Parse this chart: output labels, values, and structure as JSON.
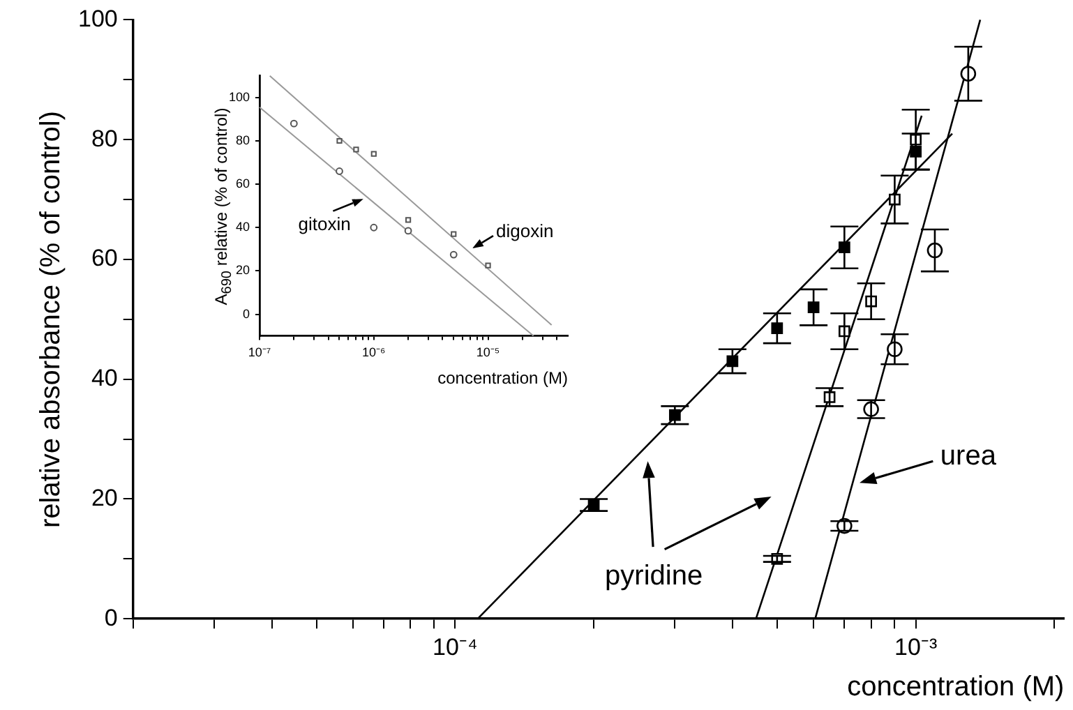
{
  "chart_data": [
    {
      "type": "scatter",
      "xlabel": "concentration (M)",
      "ylabel": "relative absorbance (% of control)",
      "log": "x",
      "grid": false,
      "legend": false,
      "xlim": [
        2e-05,
        0.0021
      ],
      "ylim": [
        0,
        100
      ],
      "xticks": [
        {
          "value": 2e-05,
          "label": null
        },
        {
          "value": 3e-05,
          "label": null
        },
        {
          "value": 4e-05,
          "label": null
        },
        {
          "value": 5e-05,
          "label": null
        },
        {
          "value": 6e-05,
          "label": null
        },
        {
          "value": 7e-05,
          "label": null
        },
        {
          "value": 8e-05,
          "label": null
        },
        {
          "value": 9e-05,
          "label": null
        },
        {
          "value": 0.0001,
          "label": "10⁻⁴"
        },
        {
          "value": 0.0002,
          "label": null
        },
        {
          "value": 0.0003,
          "label": null
        },
        {
          "value": 0.0004,
          "label": null
        },
        {
          "value": 0.0005,
          "label": null
        },
        {
          "value": 0.0006,
          "label": null
        },
        {
          "value": 0.0007,
          "label": null
        },
        {
          "value": 0.0008,
          "label": null
        },
        {
          "value": 0.0009,
          "label": null
        },
        {
          "value": 0.001,
          "label": "10⁻³"
        },
        {
          "value": 0.002,
          "label": null
        }
      ],
      "yticks": [
        0,
        {
          "value": 10,
          "label": null
        },
        20,
        {
          "value": 30,
          "label": null
        },
        40,
        {
          "value": 50,
          "label": null
        },
        60,
        {
          "value": 70,
          "label": null
        },
        80,
        {
          "value": 90,
          "label": null
        },
        100
      ],
      "series": [
        {
          "type": "scatter",
          "color": "#000000",
          "marker": "square",
          "x": [
            0.0002,
            0.0003,
            0.0004,
            0.0005,
            0.0006,
            0.0007,
            0.001
          ],
          "values": [
            19,
            34,
            43,
            48.5,
            52,
            62,
            78
          ],
          "errors": [
            1,
            1.5,
            2,
            2.5,
            3,
            3.5,
            3
          ]
        },
        {
          "type": "scatter",
          "color": "#000000",
          "marker": "square",
          "x": [
            0.0005,
            0.00065,
            0.0007,
            0.0008,
            0.0009,
            0.001
          ],
          "values": [
            10,
            37,
            48,
            53,
            70,
            80
          ],
          "errors": [
            0.5,
            1.5,
            3,
            3,
            4,
            5
          ]
        },
        {
          "type": "scatter",
          "color": "#000000",
          "marker": "circle",
          "x": [
            0.0007,
            0.0008,
            0.0009,
            0.0011,
            0.0013
          ],
          "values": [
            15.5,
            35,
            45,
            61.5,
            91
          ],
          "errors": [
            0.8,
            1.5,
            2.5,
            3.5,
            4.5
          ]
        },
        {
          "type": "line",
          "color": "#000000",
          "marker": "none",
          "x": [
            0.000112,
            0.0012
          ],
          "values": [
            0,
            81
          ]
        },
        {
          "type": "line",
          "color": "#000000",
          "marker": "none",
          "x": [
            0.00045,
            0.00103
          ],
          "values": [
            0,
            84
          ]
        },
        {
          "type": "line",
          "color": "#000000",
          "marker": "none",
          "x": [
            0.000605,
            0.00138
          ],
          "values": [
            0,
            100
          ]
        }
      ],
      "annotations": [
        "pyridine",
        "urea"
      ]
    },
    {
      "type": "scatter",
      "xlabel": "concentration (M)",
      "ylabel": "A$_{690}$ relative (% of control)",
      "log": "x",
      "grid": false,
      "legend": false,
      "xlim": [
        1e-07,
        5e-05
      ],
      "ylim": [
        -10,
        110
      ],
      "xticks": [
        {
          "value": 1e-07,
          "label": "10⁻⁷"
        },
        {
          "value": 2e-07,
          "label": null
        },
        {
          "value": 3e-07,
          "label": null
        },
        {
          "value": 4e-07,
          "label": null
        },
        {
          "value": 5e-07,
          "label": null
        },
        {
          "value": 6e-07,
          "label": null
        },
        {
          "value": 7e-07,
          "label": null
        },
        {
          "value": 8e-07,
          "label": null
        },
        {
          "value": 9e-07,
          "label": null
        },
        {
          "value": 1e-06,
          "label": "10⁻⁶"
        },
        {
          "value": 2e-06,
          "label": null
        },
        {
          "value": 3e-06,
          "label": null
        },
        {
          "value": 4e-06,
          "label": null
        },
        {
          "value": 5e-06,
          "label": null
        },
        {
          "value": 6e-06,
          "label": null
        },
        {
          "value": 7e-06,
          "label": null
        },
        {
          "value": 8e-06,
          "label": null
        },
        {
          "value": 9e-06,
          "label": null
        },
        {
          "value": 1e-05,
          "label": "10⁻⁵"
        },
        {
          "value": 2e-05,
          "label": null
        },
        {
          "value": 3e-05,
          "label": null
        },
        {
          "value": 4e-05,
          "label": null
        }
      ],
      "yticks": [
        0,
        20,
        40,
        60,
        80,
        100
      ],
      "series": [
        {
          "type": "scatter",
          "color": "#555555",
          "marker": "circle",
          "x": [
            2e-07,
            5e-07,
            1e-06,
            2e-06,
            5e-06
          ],
          "values": [
            88,
            66,
            40,
            38.5,
            27.5
          ]
        },
        {
          "type": "scatter",
          "color": "#555555",
          "marker": "square",
          "x": [
            5e-07,
            7e-07,
            1e-06,
            2e-06,
            5e-06,
            1e-05
          ],
          "values": [
            80,
            76,
            74,
            43.5,
            37,
            22.5
          ]
        },
        {
          "type": "line",
          "color": "#999999",
          "marker": "none",
          "x": [
            1e-07,
            2.5e-05
          ],
          "values": [
            95.5,
            -10
          ]
        },
        {
          "type": "line",
          "color": "#999999",
          "marker": "none",
          "x": [
            1.23e-07,
            3.6e-05
          ],
          "values": [
            110,
            -5
          ]
        }
      ],
      "annotations": [
        "gitoxin",
        "digoxin"
      ]
    }
  ]
}
